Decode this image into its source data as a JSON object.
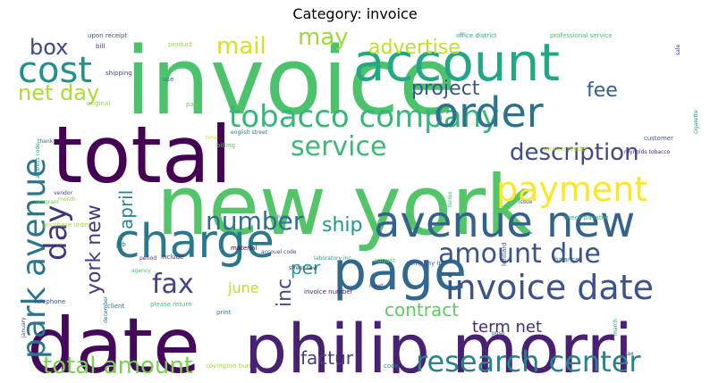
{
  "title": "Category: invoice",
  "words": [
    {
      "text": "invoice",
      "color": "#4cc26c"
    },
    {
      "text": "new york",
      "color": "#52c569"
    },
    {
      "text": "total",
      "color": "#440154"
    },
    {
      "text": "date",
      "color": "#46085c"
    },
    {
      "text": "philip morri",
      "color": "#482173"
    },
    {
      "text": "account",
      "color": "#22a884"
    },
    {
      "text": "page",
      "color": "#31688e"
    },
    {
      "text": "charge",
      "color": "#2a788e"
    },
    {
      "text": "avenue new",
      "color": "#33628d"
    },
    {
      "text": "tobacco company",
      "color": "#35b779"
    },
    {
      "text": "order",
      "color": "#2c728e"
    },
    {
      "text": "cost",
      "color": "#21918c"
    },
    {
      "text": "payment",
      "color": "#fde725"
    },
    {
      "text": "invoice date",
      "color": "#3b528b"
    },
    {
      "text": "park avenue",
      "color": "#2a768e"
    },
    {
      "text": "research center",
      "color": "#26828e"
    },
    {
      "text": "service",
      "color": "#3aba76"
    },
    {
      "text": "number",
      "color": "#2e6e8e"
    },
    {
      "text": "amount due",
      "color": "#39558c"
    },
    {
      "text": "day",
      "color": "#42337f"
    },
    {
      "text": "total amount",
      "color": "#7ad151"
    },
    {
      "text": "fax",
      "color": "#404387"
    },
    {
      "text": "description",
      "color": "#3e4a89"
    },
    {
      "text": "mail",
      "color": "#d8e219"
    },
    {
      "text": "may",
      "color": "#9dd93b"
    },
    {
      "text": "box",
      "color": "#3f4788"
    },
    {
      "text": "net day",
      "color": "#addc30"
    },
    {
      "text": "project",
      "color": "#38588c"
    },
    {
      "text": "advertise",
      "color": "#c0df25"
    },
    {
      "text": "fee",
      "color": "#355f8d"
    },
    {
      "text": "york new",
      "color": "#453781"
    },
    {
      "text": "april",
      "color": "#23888e"
    },
    {
      "text": "ship",
      "color": "#1f9a8a"
    },
    {
      "text": "inc",
      "color": "#3d4d8a"
    },
    {
      "text": "per",
      "color": "#1fa187"
    },
    {
      "text": "contract",
      "color": "#60ca60"
    },
    {
      "text": "term net",
      "color": "#472c7a"
    },
    {
      "text": "factur",
      "color": "#433e85"
    },
    {
      "text": "june",
      "color": "#bddf26"
    },
    {
      "text": "upon receipt",
      "color": "#3b528b"
    },
    {
      "text": "bill",
      "color": "#443a83"
    },
    {
      "text": "product",
      "color": "#90d743"
    },
    {
      "text": "office district",
      "color": "#22a785"
    },
    {
      "text": "professional service",
      "color": "#44bf70"
    },
    {
      "text": "shipping",
      "color": "#3f4788"
    },
    {
      "text": "original",
      "color": "#8fd744"
    },
    {
      "text": "use",
      "color": "#2d708e"
    },
    {
      "text": "pay",
      "color": "#6ece58"
    },
    {
      "text": "english street",
      "color": "#2c728e"
    },
    {
      "text": "billing",
      "color": "#5ec962"
    },
    {
      "text": "time",
      "color": "#c2df23"
    },
    {
      "text": "thank",
      "color": "#31688e"
    },
    {
      "text": "customer",
      "color": "#34608d"
    },
    {
      "text": "reynolds tobacco",
      "color": "#482475"
    },
    {
      "text": "service render",
      "color": "#b5de2b"
    },
    {
      "text": "lorillard",
      "color": "#3f4889"
    },
    {
      "text": "issue",
      "color": "#3b528b"
    },
    {
      "text": "check payable",
      "color": "#37b878"
    },
    {
      "text": "hour",
      "color": "#2b758e"
    },
    {
      "text": "material",
      "color": "#440154"
    },
    {
      "text": "accouel code",
      "color": "#3e4c8a"
    },
    {
      "text": "laboratory inc",
      "color": "#20a386"
    },
    {
      "text": "street new",
      "color": "#472d7b"
    },
    {
      "text": "purchase order",
      "color": "#9bd93c"
    },
    {
      "text": "job",
      "color": "#31688e"
    },
    {
      "text": "period",
      "color": "#462f7c"
    },
    {
      "text": "include",
      "color": "#482878"
    },
    {
      "text": "august",
      "color": "#65cb5e"
    },
    {
      "text": "company inc",
      "color": "#39568c"
    },
    {
      "text": "balance",
      "color": "#2f6c8e"
    },
    {
      "text": "meet",
      "color": "#3e4989"
    },
    {
      "text": "invoice number",
      "color": "#481a6c"
    },
    {
      "text": "client",
      "color": "#2c738e"
    },
    {
      "text": "please return",
      "color": "#4ac16d"
    },
    {
      "text": "print",
      "color": "#25848e"
    },
    {
      "text": "telephone",
      "color": "#3b528b"
    },
    {
      "text": "covington burl",
      "color": "#9fda3a"
    },
    {
      "text": "code",
      "color": "#277f8e"
    },
    {
      "text": "push",
      "color": "#3e4989"
    },
    {
      "text": "march",
      "color": "#21918c"
    },
    {
      "text": "tax",
      "color": "#3f4788"
    },
    {
      "text": "agency",
      "color": "#46c06f"
    },
    {
      "text": "month",
      "color": "#8bd646"
    },
    {
      "text": "vendor",
      "color": "#433d84"
    },
    {
      "text": "address code",
      "color": "#1e9b8a"
    },
    {
      "text": "january",
      "color": "#3c4f8a"
    },
    {
      "text": "program",
      "color": "#6ccd5a"
    },
    {
      "text": "december",
      "color": "#2a788e"
    },
    {
      "text": "terms",
      "color": "#3aba76"
    },
    {
      "text": "cigarette",
      "color": "#21918c"
    },
    {
      "text": "sale",
      "color": "#481f70"
    }
  ]
}
